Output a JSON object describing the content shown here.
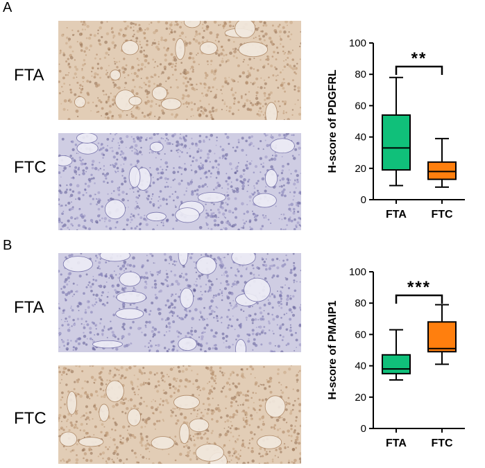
{
  "panels": [
    {
      "letter": "A",
      "rows": [
        {
          "label": "FTA",
          "stain": "brown"
        },
        {
          "label": "FTC",
          "stain": "blue"
        }
      ]
    },
    {
      "letter": "B",
      "rows": [
        {
          "label": "FTA",
          "stain": "blue"
        },
        {
          "label": "FTC",
          "stain": "brown"
        }
      ]
    }
  ],
  "colors": {
    "FTA": "#10c07a",
    "FTC": "#ff7f0e",
    "brown_tissue": "#c9a98a",
    "blue_tissue": "#8a86b8"
  },
  "chart_data": [
    {
      "type": "box",
      "ylabel": "H-score of PDGFRL",
      "ylim": [
        0,
        100
      ],
      "yticks": [
        0,
        20,
        40,
        60,
        80,
        100
      ],
      "categories": [
        "FTA",
        "FTC"
      ],
      "boxes": [
        {
          "name": "FTA",
          "min": 9,
          "q1": 19,
          "median": 33,
          "q3": 54,
          "max": 78
        },
        {
          "name": "FTC",
          "min": 8,
          "q1": 13,
          "median": 18,
          "q3": 24,
          "max": 39
        }
      ],
      "significance": "**"
    },
    {
      "type": "box",
      "ylabel": "H-score of PMAIP1",
      "ylim": [
        0,
        100
      ],
      "yticks": [
        0,
        20,
        40,
        60,
        80,
        100
      ],
      "categories": [
        "FTA",
        "FTC"
      ],
      "boxes": [
        {
          "name": "FTA",
          "min": 31,
          "q1": 35,
          "median": 38,
          "q3": 47,
          "max": 63
        },
        {
          "name": "FTC",
          "min": 41,
          "q1": 49,
          "median": 51,
          "q3": 68,
          "max": 79
        }
      ],
      "significance": "***"
    }
  ]
}
